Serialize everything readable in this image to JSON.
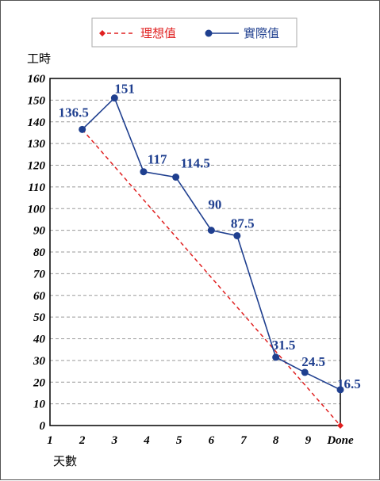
{
  "chart_data": {
    "type": "line",
    "title": "",
    "ylabel": "工時",
    "xlabel": "天數",
    "ylim": [
      0,
      160
    ],
    "y_ticks": [
      "0",
      "10",
      "20",
      "30",
      "40",
      "50",
      "60",
      "70",
      "80",
      "90",
      "100",
      "110",
      "120",
      "130",
      "140",
      "150",
      "160"
    ],
    "categories": [
      "1",
      "2",
      "3",
      "4",
      "5",
      "6",
      "7",
      "8",
      "9",
      "Done"
    ],
    "grid": "horizontal dashed",
    "legend_position": "top-center",
    "series": [
      {
        "name": "理想值",
        "style": "dashed",
        "color": "#e02020",
        "marker": "diamond",
        "points": [
          {
            "x": 2,
            "y": 136.5
          },
          {
            "x": 10,
            "y": 0
          }
        ]
      },
      {
        "name": "實際值",
        "style": "solid",
        "color": "#1f3f8f",
        "marker": "circle",
        "points": [
          {
            "x": 2,
            "y": 136.5,
            "label": "136.5"
          },
          {
            "x": 3,
            "y": 151,
            "label": "151"
          },
          {
            "x": 3.9,
            "y": 117,
            "label": "117"
          },
          {
            "x": 4.9,
            "y": 114.5,
            "label": "114.5"
          },
          {
            "x": 6,
            "y": 90,
            "label": "90"
          },
          {
            "x": 6.8,
            "y": 87.5,
            "label": "87.5"
          },
          {
            "x": 8,
            "y": 31.5,
            "label": "31.5"
          },
          {
            "x": 8.9,
            "y": 24.5,
            "label": "24.5"
          },
          {
            "x": 10,
            "y": 16.5,
            "label": "16.5"
          }
        ]
      }
    ]
  }
}
